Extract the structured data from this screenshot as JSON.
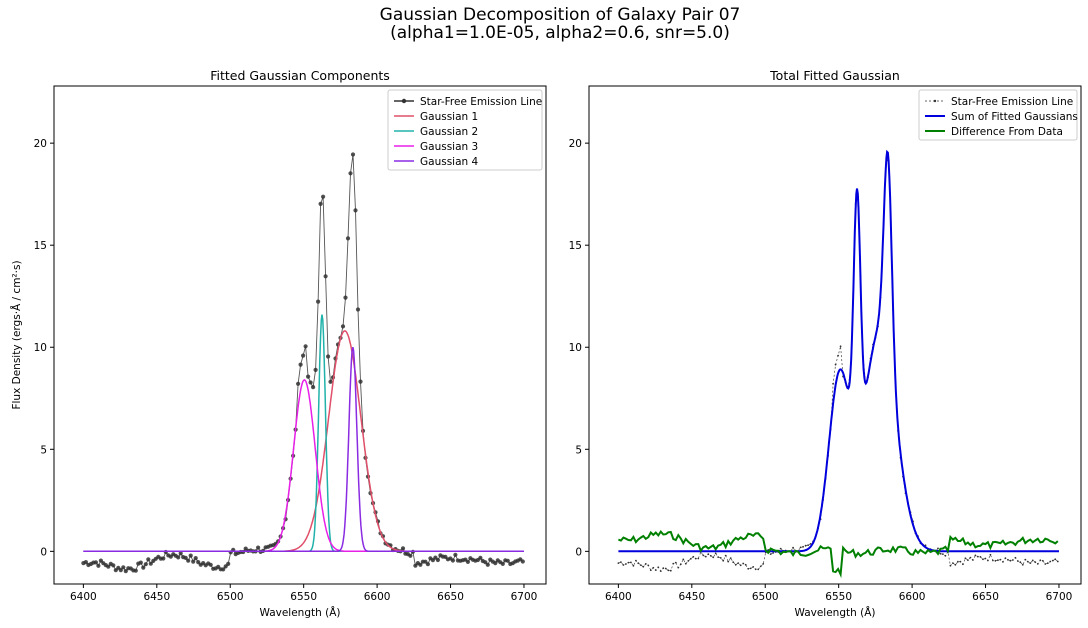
{
  "figure": {
    "suptitle_line1": "Gaussian Decomposition of Galaxy Pair 07",
    "suptitle_line2": "(alpha1=1.0E-05, alpha2=0.6, snr=5.0)"
  },
  "chart_data": [
    {
      "type": "line",
      "title": "Fitted Gaussian Components",
      "xlabel": "Wavelength (Å)",
      "ylabel": "Flux Density (ergs·Å / cm²·s)",
      "xlim": [
        6380,
        6715
      ],
      "ylim": [
        -1.6,
        22.8
      ],
      "xticks": [
        6400,
        6450,
        6500,
        6550,
        6600,
        6650,
        6700
      ],
      "yticks": [
        0,
        5,
        10,
        15,
        20
      ],
      "grid": false,
      "legend_position": "top-right",
      "data_series": {
        "name": "Star-Free Emission Line",
        "color": "#333333",
        "x_range": [
          6400,
          6700
        ],
        "x_step": 1.7,
        "gaussians": [
          {
            "amp": 10.8,
            "mu": 6578,
            "sigma": 11.0
          },
          {
            "amp": 11.6,
            "mu": 6562.5,
            "sigma": 2.3
          },
          {
            "amp": 8.4,
            "mu": 6550.5,
            "sigma": 7.3
          },
          {
            "amp": 10.0,
            "mu": 6583.5,
            "sigma": 2.7
          }
        ]
      },
      "series": [
        {
          "name": "Gaussian 1",
          "color": "#e0506a",
          "amp": 10.8,
          "mu": 6578,
          "sigma": 11.0
        },
        {
          "name": "Gaussian 2",
          "color": "#20b2aa",
          "amp": 11.6,
          "mu": 6562.5,
          "sigma": 2.3
        },
        {
          "name": "Gaussian 3",
          "color": "#e820e8",
          "amp": 8.4,
          "mu": 6550.5,
          "sigma": 7.3
        },
        {
          "name": "Gaussian 4",
          "color": "#8a2be2",
          "amp": 10.0,
          "mu": 6583.5,
          "sigma": 2.7
        }
      ]
    },
    {
      "type": "line",
      "title": "Total Fitted Gaussian",
      "xlabel": "Wavelength (Å)",
      "ylabel": "",
      "xlim": [
        6380,
        6715
      ],
      "ylim": [
        -1.6,
        22.8
      ],
      "xticks": [
        6400,
        6450,
        6500,
        6550,
        6600,
        6650,
        6700
      ],
      "yticks": [
        0,
        5,
        10,
        15,
        20
      ],
      "grid": false,
      "legend_position": "top-right",
      "series": [
        {
          "name": "Star-Free Emission Line",
          "color": "#333333",
          "style": "dashed-dots"
        },
        {
          "name": "Sum of Fitted Gaussians",
          "color": "#0000dd",
          "style": "solid"
        },
        {
          "name": "Difference From Data",
          "color": "#008000",
          "style": "solid"
        }
      ]
    }
  ]
}
